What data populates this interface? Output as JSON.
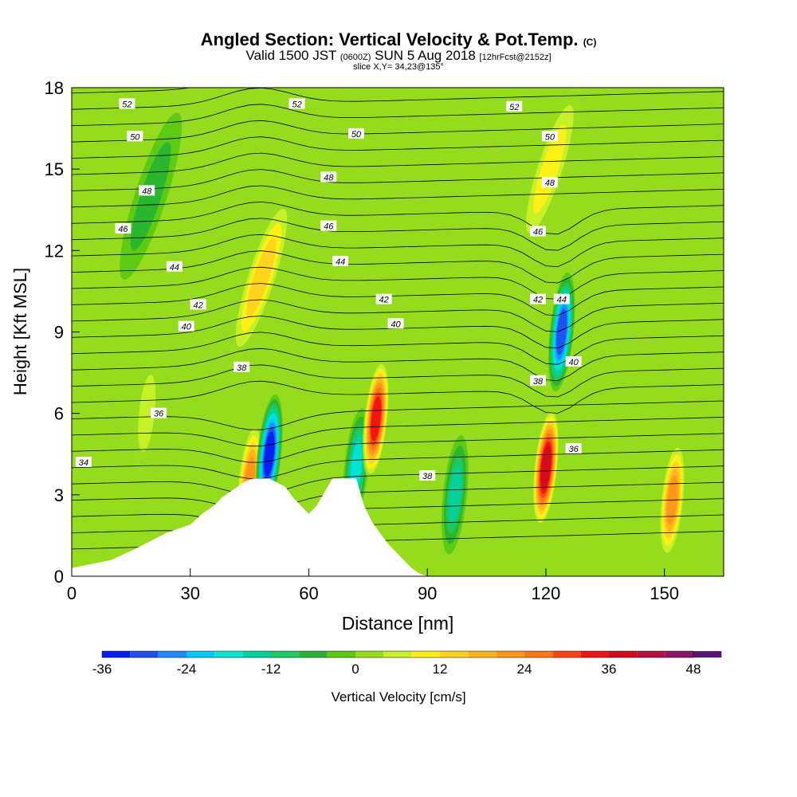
{
  "header": {
    "title": "Angled Section: Vertical Velocity & Pot.Temp.",
    "title_unit": "(C)",
    "valid_prefix": "Valid 1500 JST",
    "valid_zulu": "(0600Z)",
    "valid_date": "SUN 5 Aug 2018",
    "forecast": "[12hrFcst@2152z]",
    "slice": "slice X,Y= 34,23@135°"
  },
  "chart_data": {
    "type": "heatmap",
    "xlabel": "Distance [nm]",
    "ylabel": "Height [Kft MSL]",
    "xlim": [
      0,
      165
    ],
    "ylim": [
      0,
      18
    ],
    "xticks": [
      0,
      30,
      60,
      90,
      120,
      150
    ],
    "yticks": [
      0,
      3,
      6,
      9,
      12,
      15,
      18
    ],
    "colorbar": {
      "label": "Vertical Velocity [cm/s]",
      "min": -36,
      "max": 48,
      "step": 4,
      "ticks": [
        -36,
        -24,
        -12,
        0,
        12,
        24,
        36,
        48
      ],
      "colors": [
        "#0a1ef0",
        "#1e50f0",
        "#1e8cff",
        "#00c8ff",
        "#00e6d2",
        "#00d2a0",
        "#1ec864",
        "#28b432",
        "#5ac814",
        "#96dc1e",
        "#c8f028",
        "#fff014",
        "#ffd21e",
        "#ffb41e",
        "#ff961e",
        "#ff7814",
        "#ff4614",
        "#f01414",
        "#d20a1e",
        "#b4143c",
        "#8c1464",
        "#5a1478"
      ]
    },
    "vertical_velocity_features": [
      {
        "type": "updraft",
        "x": 45,
        "z": 3.5,
        "w": 24
      },
      {
        "type": "downdraft",
        "x": 50,
        "z": 4.5,
        "w": -34
      },
      {
        "type": "updraft",
        "x": 48,
        "z": 11,
        "w": 14
      },
      {
        "type": "downdraft",
        "x": 72,
        "z": 4,
        "w": -20
      },
      {
        "type": "updraft",
        "x": 77,
        "z": 5.8,
        "w": 36
      },
      {
        "type": "downdraft",
        "x": 97,
        "z": 3,
        "w": -16
      },
      {
        "type": "updraft",
        "x": 120,
        "z": 4,
        "w": 38
      },
      {
        "type": "downdraft",
        "x": 124,
        "z": 9,
        "w": -32
      },
      {
        "type": "updraft",
        "x": 121,
        "z": 15,
        "w": 10
      },
      {
        "type": "updraft",
        "x": 152,
        "z": 2.8,
        "w": 24
      },
      {
        "type": "downdraft",
        "x": 20,
        "z": 14,
        "w": -8
      },
      {
        "type": "updraft",
        "x": 19,
        "z": 6,
        "w": 8
      }
    ],
    "potential_temperature_labels": [
      {
        "value": "52",
        "x": 14,
        "z": 17.4
      },
      {
        "value": "52",
        "x": 57,
        "z": 17.4
      },
      {
        "value": "52",
        "x": 112,
        "z": 17.3
      },
      {
        "value": "50",
        "x": 16,
        "z": 16.2
      },
      {
        "value": "50",
        "x": 72,
        "z": 16.3
      },
      {
        "value": "50",
        "x": 121,
        "z": 16.2
      },
      {
        "value": "48",
        "x": 19,
        "z": 14.2
      },
      {
        "value": "48",
        "x": 65,
        "z": 14.7
      },
      {
        "value": "48",
        "x": 121,
        "z": 14.5
      },
      {
        "value": "46",
        "x": 13,
        "z": 12.8
      },
      {
        "value": "46",
        "x": 65,
        "z": 12.9
      },
      {
        "value": "46",
        "x": 118,
        "z": 12.7
      },
      {
        "value": "44",
        "x": 26,
        "z": 11.4
      },
      {
        "value": "44",
        "x": 68,
        "z": 11.6
      },
      {
        "value": "44",
        "x": 124,
        "z": 10.2
      },
      {
        "value": "42",
        "x": 32,
        "z": 10.0
      },
      {
        "value": "42",
        "x": 79,
        "z": 10.2
      },
      {
        "value": "42",
        "x": 118,
        "z": 10.2
      },
      {
        "value": "40",
        "x": 29,
        "z": 9.2
      },
      {
        "value": "40",
        "x": 82,
        "z": 9.3
      },
      {
        "value": "40",
        "x": 127,
        "z": 7.9
      },
      {
        "value": "38",
        "x": 43,
        "z": 7.7
      },
      {
        "value": "38",
        "x": 90,
        "z": 3.7
      },
      {
        "value": "38",
        "x": 118,
        "z": 7.2
      },
      {
        "value": "36",
        "x": 22,
        "z": 6.0
      },
      {
        "value": "36",
        "x": 127,
        "z": 4.7
      },
      {
        "value": "34",
        "x": 3,
        "z": 4.2
      }
    ],
    "terrain": {
      "x": [
        0,
        10,
        16,
        20,
        24,
        30,
        33,
        36,
        38,
        40,
        42,
        44,
        46,
        48,
        50,
        54,
        56,
        58,
        60,
        62,
        66,
        68,
        72,
        74,
        76,
        78,
        80,
        82,
        84,
        86,
        88,
        90,
        165
      ],
      "z": [
        0.3,
        0.6,
        1.0,
        1.3,
        1.6,
        1.9,
        2.3,
        2.6,
        2.9,
        3.1,
        3.3,
        3.5,
        3.6,
        3.6,
        3.6,
        3.3,
        2.9,
        2.6,
        2.3,
        2.6,
        3.6,
        3.6,
        3.6,
        2.6,
        2.0,
        1.6,
        1.2,
        0.9,
        0.6,
        0.3,
        0.1,
        0.0,
        0.0
      ]
    }
  }
}
